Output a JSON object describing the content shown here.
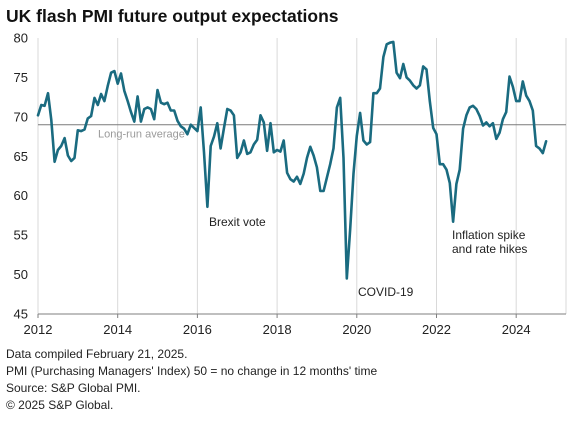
{
  "title": "UK flash PMI future output expectations",
  "footer": {
    "line1": "Data compiled February 21, 2025.",
    "line2": "PMI (Purchasing Managers' Index) 50 = no change in 12 months' time",
    "line3": "Source: S&P Global PMI.",
    "line4": "© 2025 S&P Global."
  },
  "chart_data": {
    "type": "line",
    "xlabel": "",
    "ylabel": "",
    "xlim": [
      2012,
      2025.25
    ],
    "ylim": [
      45,
      80
    ],
    "x_ticks": [
      "2012",
      "2014",
      "2016",
      "2018",
      "2020",
      "2022",
      "2024"
    ],
    "y_ticks": [
      "45",
      "50",
      "55",
      "60",
      "65",
      "70",
      "75",
      "80"
    ],
    "grid": "vertical",
    "colors": {
      "line": "#1a6b80",
      "reference": "#7a7a7a",
      "grid": "#d9d9d9",
      "axis": "#7f7f7f"
    },
    "reference_line": {
      "label": "Long-run average",
      "value": 69
    },
    "annotations": [
      {
        "text": "Brexit vote",
        "x": 2016.5,
        "y": 58.7
      },
      {
        "text": "COVID-19",
        "x": 2020.25,
        "y": 49.5
      },
      {
        "text": "Inflation spike",
        "x": 2022.83,
        "y": 56.5
      },
      {
        "text": "and rate hikes",
        "x": 2022.83,
        "y": 56.5
      }
    ],
    "series": [
      {
        "x_start": 2012.0,
        "x_step": 0.0833333,
        "values": [
          70.2,
          71.5,
          71.4,
          73.0,
          69.6,
          64.3,
          65.8,
          66.3,
          67.3,
          65.1,
          64.4,
          64.8,
          68.3,
          68.2,
          68.4,
          69.8,
          70.1,
          72.4,
          71.5,
          72.9,
          72.0,
          73.9,
          75.6,
          75.8,
          74.2,
          75.5,
          73.3,
          72.0,
          70.6,
          69.4,
          72.6,
          69.4,
          71.0,
          71.2,
          71.0,
          69.7,
          73.4,
          71.8,
          71.6,
          71.8,
          70.8,
          70.8,
          69.5,
          68.8,
          68.5,
          67.8,
          69.0,
          68.6,
          68.2,
          71.2,
          65.5,
          58.6,
          66.3,
          67.5,
          69.2,
          66.0,
          68.6,
          71.0,
          70.8,
          70.2,
          64.8,
          65.5,
          67.0,
          65.3,
          65.5,
          66.5,
          67.1,
          70.2,
          69.3,
          65.7,
          69.2,
          65.5,
          65.8,
          65.6,
          67.0,
          62.9,
          62.1,
          61.8,
          62.4,
          61.5,
          62.8,
          64.8,
          66.2,
          65.1,
          63.6,
          60.6,
          60.6,
          62.3,
          64.0,
          66.0,
          71.2,
          72.4,
          64.8,
          49.5,
          55.8,
          62.8,
          67.6,
          70.5,
          67.0,
          66.5,
          66.8,
          73.0,
          73.0,
          73.6,
          77.6,
          79.2,
          79.4,
          79.5,
          75.6,
          74.9,
          76.7,
          75.0,
          74.6,
          74.0,
          73.6,
          74.0,
          76.4,
          76.0,
          72.0,
          68.6,
          67.8,
          64.0,
          64.0,
          63.3,
          61.6,
          56.7,
          61.5,
          63.3,
          68.5,
          70.2,
          71.2,
          71.4,
          71.0,
          70.1,
          68.9,
          69.3,
          68.8,
          69.2,
          67.2,
          68.0,
          69.7,
          70.6,
          75.1,
          73.8,
          72.0,
          72.0,
          74.5,
          72.7,
          72.0,
          70.8,
          66.3,
          66.0,
          65.4,
          66.9
        ]
      }
    ]
  }
}
